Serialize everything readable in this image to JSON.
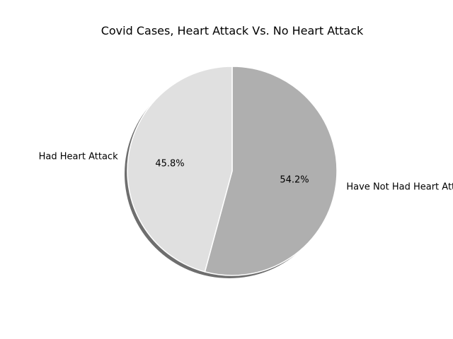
{
  "chart_data": {
    "type": "pie",
    "title": "Covid Cases, Heart Attack Vs. No Heart Attack",
    "slices": [
      {
        "label": "Have Not Had Heart Attack",
        "value": 54.2,
        "pct_text": "54.2%",
        "color": "#afafaf"
      },
      {
        "label": "Had Heart Attack",
        "value": 45.8,
        "pct_text": "45.8%",
        "color": "#e0e0e0"
      }
    ],
    "start_angle_deg": 90,
    "direction": "clockwise",
    "shadow": true,
    "legend": "none"
  }
}
